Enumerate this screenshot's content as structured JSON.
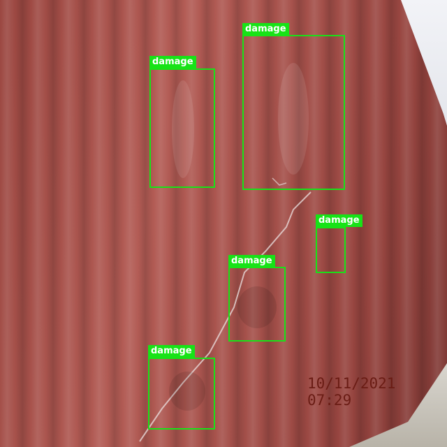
{
  "photo": {
    "subject": "shipping-container-side",
    "timestamp": "10/11/2021 07:29"
  },
  "detections": [
    {
      "label": "damage"
    },
    {
      "label": "damage"
    },
    {
      "label": "damage"
    },
    {
      "label": "damage"
    },
    {
      "label": "damage"
    }
  ],
  "colors": {
    "box": "#17e317",
    "label_text": "#ffffff",
    "timestamp": "#6a1c14"
  }
}
